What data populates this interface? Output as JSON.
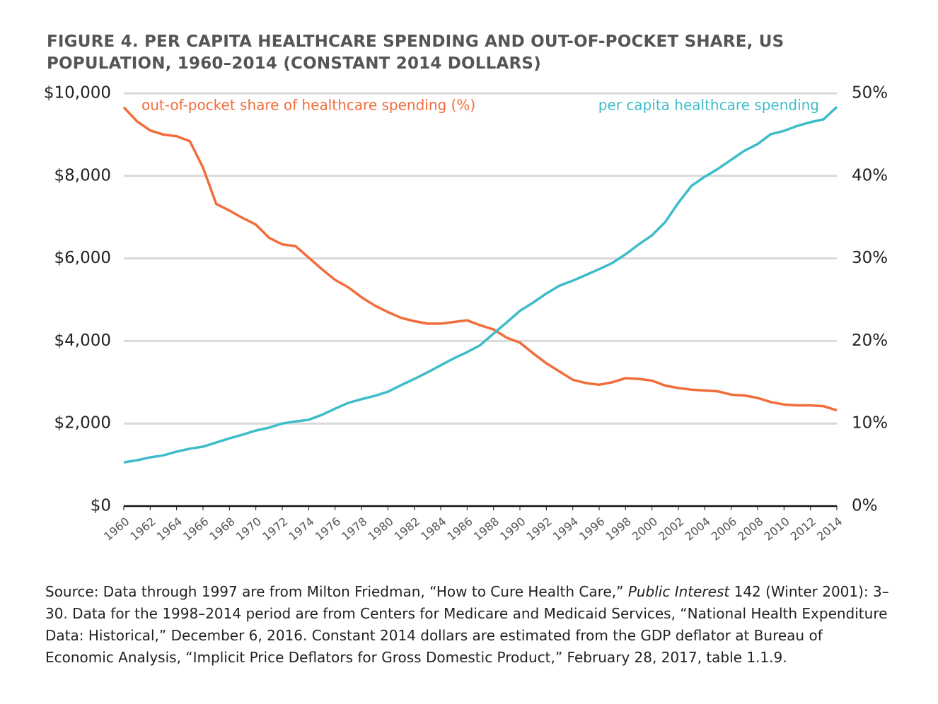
{
  "chart_data": {
    "type": "line",
    "title": "FIGURE 4. PER CAPITA HEALTHCARE SPENDING AND OUT-OF-POCKET SHARE, US POPULATION, 1960–2014 (CONSTANT 2014 DOLLARS)",
    "x": [
      1960,
      1961,
      1962,
      1963,
      1964,
      1965,
      1966,
      1967,
      1968,
      1969,
      1970,
      1971,
      1972,
      1973,
      1974,
      1975,
      1976,
      1977,
      1978,
      1979,
      1980,
      1981,
      1982,
      1983,
      1984,
      1985,
      1986,
      1987,
      1988,
      1989,
      1990,
      1991,
      1992,
      1993,
      1994,
      1995,
      1996,
      1997,
      1998,
      1999,
      2000,
      2001,
      2002,
      2003,
      2004,
      2005,
      2006,
      2007,
      2008,
      2009,
      2010,
      2011,
      2012,
      2013,
      2014
    ],
    "xlim": [
      1960,
      2014
    ],
    "xticks": [
      1960,
      1962,
      1964,
      1966,
      1968,
      1970,
      1972,
      1974,
      1976,
      1978,
      1980,
      1982,
      1984,
      1986,
      1988,
      1990,
      1992,
      1994,
      1996,
      1998,
      2000,
      2002,
      2004,
      2006,
      2008,
      2010,
      2012,
      2014
    ],
    "ylim": [
      0,
      10000
    ],
    "yticks": [
      {
        "value": 0,
        "label": "$0"
      },
      {
        "value": 2000,
        "label": "$2,000"
      },
      {
        "value": 4000,
        "label": "$4,000"
      },
      {
        "value": 6000,
        "label": "$6,000"
      },
      {
        "value": 8000,
        "label": "$8,000"
      },
      {
        "value": 10000,
        "label": "$10,000"
      }
    ],
    "y2lim": [
      0,
      50
    ],
    "y2ticks": [
      {
        "value": 0,
        "label": "0%"
      },
      {
        "value": 10,
        "label": "10%"
      },
      {
        "value": 20,
        "label": "20%"
      },
      {
        "value": 30,
        "label": "30%"
      },
      {
        "value": 40,
        "label": "40%"
      },
      {
        "value": 50,
        "label": "50%"
      }
    ],
    "grid": true,
    "series": [
      {
        "name": "out-of-pocket share of healthcare spending (%)",
        "color": "#f26c3a",
        "axis": "y2",
        "values": [
          48.3,
          46.6,
          45.5,
          45.0,
          44.8,
          44.2,
          41.0,
          36.6,
          35.8,
          34.9,
          34.1,
          32.5,
          31.7,
          31.5,
          30.1,
          28.7,
          27.4,
          26.5,
          25.3,
          24.3,
          23.5,
          22.8,
          22.4,
          22.1,
          22.1,
          22.3,
          22.5,
          21.9,
          21.4,
          20.4,
          19.8,
          18.5,
          17.3,
          16.3,
          15.3,
          14.9,
          14.7,
          15.0,
          15.5,
          15.4,
          15.2,
          14.6,
          14.3,
          14.1,
          14.0,
          13.9,
          13.5,
          13.4,
          13.1,
          12.6,
          12.3,
          12.2,
          12.2,
          12.1,
          11.6
        ]
      },
      {
        "name": "per capita healthcare spending",
        "color": "#3dbcc9",
        "values": [
          1060,
          1110,
          1180,
          1230,
          1320,
          1390,
          1440,
          1540,
          1640,
          1730,
          1830,
          1900,
          2000,
          2050,
          2090,
          2210,
          2360,
          2500,
          2590,
          2670,
          2770,
          2930,
          3080,
          3240,
          3410,
          3580,
          3730,
          3900,
          4180,
          4450,
          4730,
          4930,
          5150,
          5340,
          5460,
          5600,
          5740,
          5890,
          6100,
          6340,
          6560,
          6880,
          7350,
          7760,
          7980,
          8170,
          8390,
          8610,
          8770,
          9010,
          9090,
          9210,
          9300,
          9370,
          9670
        ]
      }
    ],
    "source": [
      "Source: Data through 1997 are from Milton Friedman, “How to Cure Health Care,” ",
      "Public Interest",
      " 142 (Winter 2001): 3–30. Data for the 1998–2014 period are from Centers for Medicare and Medicaid Services, “National Health Expenditure Data: Historical,” December 6, 2016. Constant 2014 dollars are estimated from the GDP deflator at Bureau of Economic Analysis, “Implicit Price Deflators for Gross Domestic Product,” February 28, 2017, table 1.1.9."
    ]
  }
}
